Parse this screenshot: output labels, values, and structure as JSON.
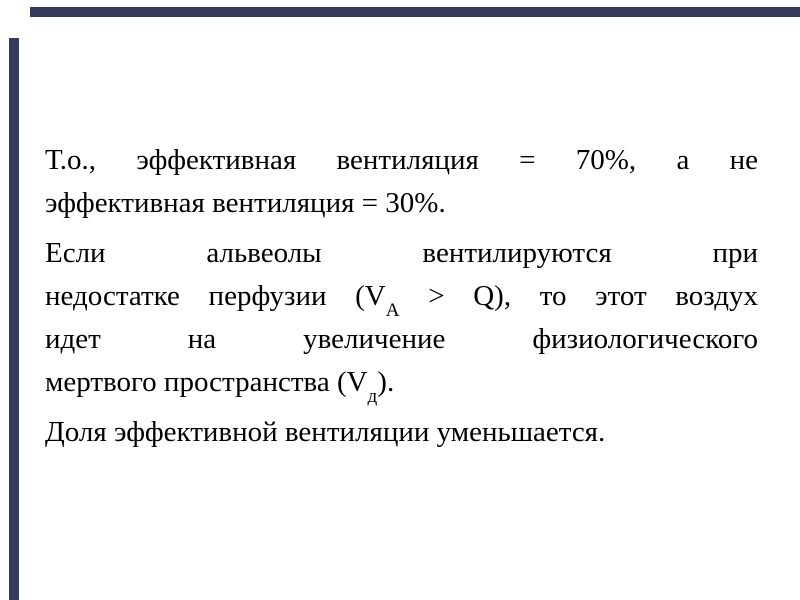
{
  "slide": {
    "background_color": "#ffffff",
    "accent_bar_color": "#333a5c",
    "text_color": "#000000",
    "paragraph1": {
      "line1": "Т.о., эффективная вентиляция = 70%, а не",
      "line2": "эффективная вентиляция = 30%."
    },
    "paragraph2": {
      "line1": "Если альвеолы вентилируются при",
      "line2_pre": "недостатке перфузии (V",
      "line2_sub": "A",
      "line2_post": " > Q), то этот воздух",
      "line3": "идет на увеличение физиологического",
      "line4_pre": "мертвого пространства (V",
      "line4_sub": "д",
      "line4_post": ")."
    },
    "paragraph3": {
      "line1": "Доля эффективной вентиляции уменьшается."
    }
  }
}
